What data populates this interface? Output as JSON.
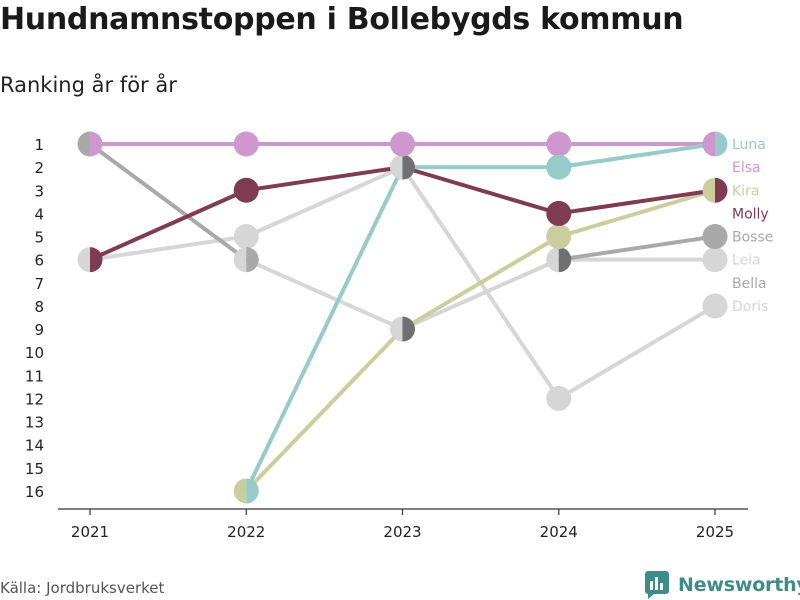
{
  "title": "Hundnamnstoppen i Bollebygds kommun",
  "subtitle": "Ranking år för år",
  "source": "Källa: Jordbruksverket",
  "brand": "Newsworthy",
  "chart_data": {
    "type": "line",
    "title": "Hundnamnstoppen i Bollebygds kommun",
    "subtitle": "Ranking år för år",
    "xlabel": "",
    "ylabel": "",
    "x": [
      "2021",
      "2022",
      "2023",
      "2024",
      "2025"
    ],
    "y_ticks": [
      "1",
      "2",
      "3",
      "4",
      "5",
      "6",
      "7",
      "8",
      "9",
      "10",
      "11",
      "12",
      "13",
      "14",
      "15",
      "16"
    ],
    "ylim": [
      1,
      16
    ],
    "y_inverted": true,
    "grid": false,
    "legend": "right",
    "series": [
      {
        "name": "Doris",
        "color": "#d6d6d6",
        "values": [
          6,
          5,
          2,
          12,
          8
        ]
      },
      {
        "name": "Bella",
        "color": "#d6d6d6",
        "values": [
          null,
          6,
          9,
          6,
          6
        ]
      },
      {
        "name": "Leia",
        "color": "#d6d6d6",
        "values": [
          6,
          null,
          null,
          null,
          6
        ]
      },
      {
        "name": "Bosse",
        "color": "#a9a9a9",
        "values": [
          1,
          6,
          null,
          6,
          5
        ]
      },
      {
        "name": "Kira",
        "color": "#cbcd9c",
        "values": [
          null,
          16,
          9,
          5,
          3
        ]
      },
      {
        "name": "Molly",
        "color": "#7e3b52",
        "values": [
          6,
          3,
          2,
          4,
          3
        ]
      },
      {
        "name": "Elsa",
        "color": "#cf97cf",
        "values": [
          1,
          1,
          1,
          1,
          1
        ]
      },
      {
        "name": "Luna",
        "color": "#97cbc9",
        "values": [
          null,
          16,
          2,
          2,
          1
        ]
      }
    ],
    "extra_points": [
      {
        "name": "Gray",
        "color": "#707072",
        "x": "2023",
        "y": 2
      },
      {
        "name": "Gray",
        "color": "#707072",
        "x": "2023",
        "y": 9
      },
      {
        "name": "Gray",
        "color": "#707072",
        "x": "2024",
        "y": 6
      }
    ],
    "labels": [
      {
        "name": "Luna",
        "color": "#97cbc9"
      },
      {
        "name": "Elsa",
        "color": "#cf97cf"
      },
      {
        "name": "Kira",
        "color": "#cbcd9c"
      },
      {
        "name": "Molly",
        "color": "#7e3b52"
      },
      {
        "name": "Bosse",
        "color": "#a9a9a9"
      },
      {
        "name": "Leia",
        "color": "#d6d6d6"
      },
      {
        "name": "Bella",
        "color": "#a9a9a9"
      },
      {
        "name": "Doris",
        "color": "#d6d6d6"
      }
    ]
  }
}
